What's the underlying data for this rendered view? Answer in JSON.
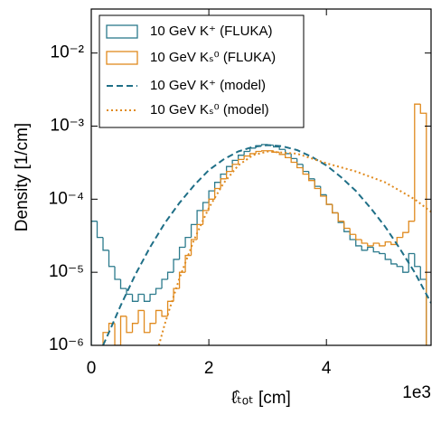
{
  "chart_data": {
    "type": "histogram",
    "xlabel": "ℓ̂ₜₒₜ [cm]",
    "ylabel": "Density [1/cm]",
    "x_offset_label": "1e3",
    "xlim": [
      0,
      5780
    ],
    "ylim": [
      1e-06,
      0.04
    ],
    "log_y": true,
    "legend": "upper left",
    "xticks": [
      {
        "value": 0,
        "label": "0"
      },
      {
        "value": 2000,
        "label": "2"
      },
      {
        "value": 4000,
        "label": "4"
      }
    ],
    "yticks": [
      {
        "value": 1e-06,
        "label": "10⁻⁶"
      },
      {
        "value": 1e-05,
        "label": "10⁻⁵"
      },
      {
        "value": 0.0001,
        "label": "10⁻⁴"
      },
      {
        "value": 0.001,
        "label": "10⁻³"
      },
      {
        "value": 0.01,
        "label": "10⁻²"
      }
    ],
    "bins": [
      0,
      100,
      200,
      300,
      400,
      500,
      600,
      700,
      800,
      900,
      1000,
      1100,
      1200,
      1300,
      1400,
      1500,
      1600,
      1700,
      1800,
      1900,
      2000,
      2100,
      2200,
      2300,
      2400,
      2500,
      2600,
      2700,
      2800,
      2900,
      3000,
      3100,
      3200,
      3300,
      3400,
      3500,
      3600,
      3700,
      3800,
      3900,
      4000,
      4100,
      4200,
      4300,
      4400,
      4500,
      4600,
      4700,
      4800,
      4900,
      5000,
      5100,
      5200,
      5300,
      5400,
      5500,
      5600,
      5700
    ],
    "series": [
      {
        "name": "10 GeV K⁺ (FLUKA)",
        "color": "#2b7a8c",
        "values": [
          5e-05,
          3e-05,
          2e-05,
          1.2e-05,
          8e-06,
          6e-06,
          5e-06,
          4e-06,
          5e-06,
          4e-06,
          5e-06,
          6e-06,
          8e-06,
          1e-05,
          1.5e-05,
          2.2e-05,
          3e-05,
          4.5e-05,
          7e-05,
          9e-05,
          0.00013,
          0.00017,
          0.00022,
          0.00028,
          0.00034,
          0.0004,
          0.00045,
          0.0005,
          0.00054,
          0.00056,
          0.00055,
          0.00052,
          0.00048,
          0.00042,
          0.00036,
          0.0003,
          0.00024,
          0.00019,
          0.00015,
          0.000115,
          8.5e-05,
          6.5e-05,
          4.8e-05,
          3.6e-05,
          2.8e-05,
          2.3e-05,
          2e-05,
          2.2e-05,
          1.9e-05,
          1.8e-05,
          1.5e-05,
          1.3e-05,
          1.2e-05,
          1e-05,
          1.8e-05,
          1.2e-05,
          8e-06
        ]
      },
      {
        "name": "10 GeV Kₛ⁰ (FLUKA)",
        "color": "#e08a1e",
        "values": [
          0,
          0,
          1.5e-06,
          2e-06,
          1e-06,
          2.5e-06,
          1.5e-06,
          2e-06,
          3e-06,
          1.5e-06,
          2e-06,
          3e-06,
          2.5e-06,
          4e-06,
          6e-06,
          1e-05,
          1.7e-05,
          2.8e-05,
          4.5e-05,
          7e-05,
          0.0001,
          0.00014,
          0.00019,
          0.00024,
          0.0003,
          0.00035,
          0.00039,
          0.00042,
          0.00045,
          0.00046,
          0.00046,
          0.00044,
          0.00041,
          0.00037,
          0.00032,
          0.00027,
          0.00022,
          0.00018,
          0.00014,
          0.00011,
          8.5e-05,
          6.5e-05,
          5e-05,
          4e-05,
          3.3e-05,
          2.8e-05,
          2.5e-05,
          2.3e-05,
          2.5e-05,
          2.3e-05,
          2.6e-05,
          2.4e-05,
          3e-05,
          3.5e-05,
          5e-05,
          0.002,
          0.0015
        ]
      }
    ],
    "model_series": [
      {
        "name": "10 GeV K⁺ (model)",
        "color": "#1f6f87",
        "dash": "dashed",
        "x": [
          200,
          300,
          500,
          750,
          1000,
          1250,
          1500,
          1750,
          2000,
          2250,
          2500,
          2750,
          3000,
          3250,
          3500,
          3750,
          4000,
          4250,
          4500,
          4750,
          5000,
          5250,
          5500,
          5780
        ],
        "values": [
          1e-06,
          1.5e-06,
          3.5e-06,
          9.3e-06,
          2.2e-05,
          4.7e-05,
          8.9e-05,
          0.000155,
          0.00025,
          0.00035,
          0.00045,
          0.00052,
          0.00055,
          0.00053,
          0.00047,
          0.00038,
          0.00029,
          0.0002,
          0.00013,
          7.6e-05,
          4.2e-05,
          2.1e-05,
          1e-05,
          3.8e-06
        ]
      },
      {
        "name": "10 GeV Kₛ⁰ (model)",
        "color": "#e08a1e",
        "dash": "dotted",
        "x": [
          1150,
          1250,
          1500,
          1750,
          2000,
          2250,
          2500,
          2750,
          3000,
          3500,
          4000,
          4500,
          5000,
          5500,
          5780
        ],
        "values": [
          1e-06,
          1.95e-06,
          8.3e-06,
          2.8e-05,
          7.6e-05,
          0.000165,
          0.00029,
          0.0004,
          0.00045,
          0.00042,
          0.00031,
          0.00024,
          0.00017,
          0.0001,
          6.7e-05
        ]
      }
    ]
  }
}
